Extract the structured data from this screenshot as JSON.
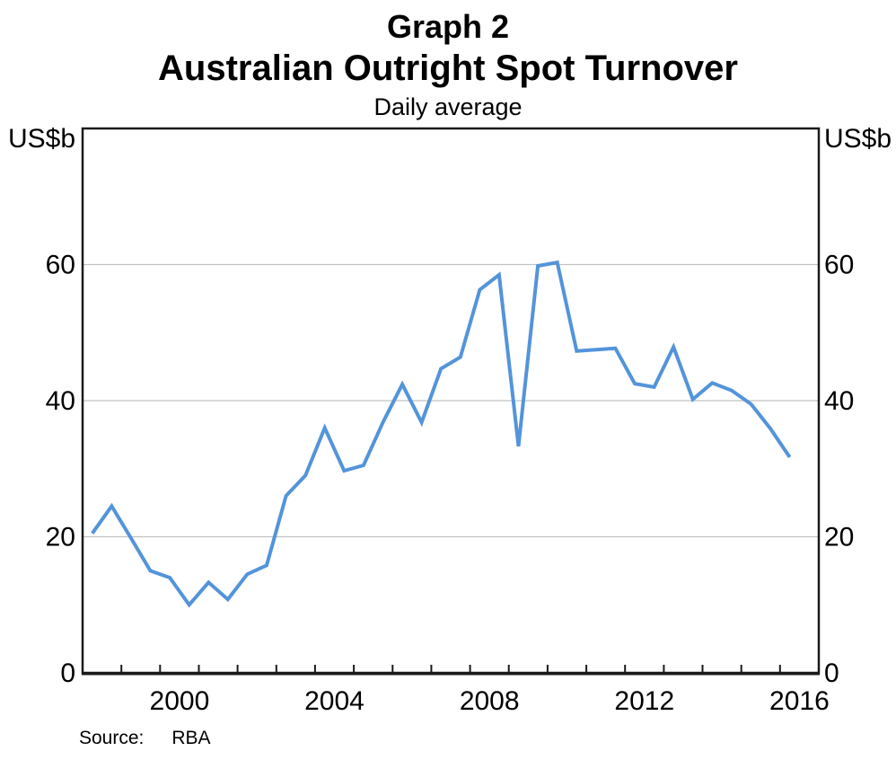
{
  "header": {
    "graph_label": "Graph 2",
    "title": "Australian Outright Spot Turnover",
    "subtitle": "Daily average"
  },
  "y_axis": {
    "unit_left": "US$b",
    "unit_right": "US$b"
  },
  "source": {
    "label": "Source:",
    "value": "RBA"
  },
  "colors": {
    "line": "#5394da",
    "grid": "#c2c2c2",
    "axis": "#1a1a1a",
    "text": "#000000",
    "background": "#ffffff"
  },
  "chart_data": {
    "type": "line",
    "title": "Australian Outright Spot Turnover",
    "subtitle": "Daily average",
    "unit": "US$b",
    "series_name": "Australian outright spot turnover, daily average",
    "frequency": "half-yearly",
    "x": [
      1998.25,
      1998.75,
      1999.25,
      1999.75,
      2000.25,
      2000.75,
      2001.25,
      2001.75,
      2002.25,
      2002.75,
      2003.25,
      2003.75,
      2004.25,
      2004.75,
      2005.25,
      2005.75,
      2006.25,
      2006.75,
      2007.25,
      2007.75,
      2008.25,
      2008.75,
      2009.25,
      2009.75,
      2010.25,
      2010.75,
      2011.25,
      2011.75,
      2012.25,
      2012.75,
      2013.25,
      2013.75,
      2014.25,
      2014.75,
      2015.25,
      2015.75,
      2016.25
    ],
    "values": [
      20.5,
      24.5,
      19.8,
      15.0,
      14.0,
      10.0,
      13.3,
      10.8,
      14.5,
      15.8,
      26.0,
      29.0,
      36.0,
      29.7,
      30.5,
      36.8,
      42.4,
      36.8,
      44.7,
      46.4,
      56.3,
      58.5,
      33.3,
      59.8,
      60.3,
      47.3,
      47.5,
      47.7,
      42.5,
      42.0,
      47.9,
      40.2,
      42.6,
      41.5,
      39.5,
      35.9,
      31.7
    ],
    "xlim": [
      1998,
      2017
    ],
    "ylim": [
      0,
      80
    ],
    "yticks": [
      0,
      20,
      40,
      60
    ],
    "xticks_years": [
      1999,
      2000,
      2001,
      2002,
      2003,
      2004,
      2005,
      2006,
      2007,
      2008,
      2009,
      2010,
      2011,
      2012,
      2013,
      2014,
      2015,
      2016
    ],
    "xlabel_years": [
      2000,
      2004,
      2008,
      2012,
      2016
    ],
    "grid": "horizontal",
    "legend": "none"
  }
}
